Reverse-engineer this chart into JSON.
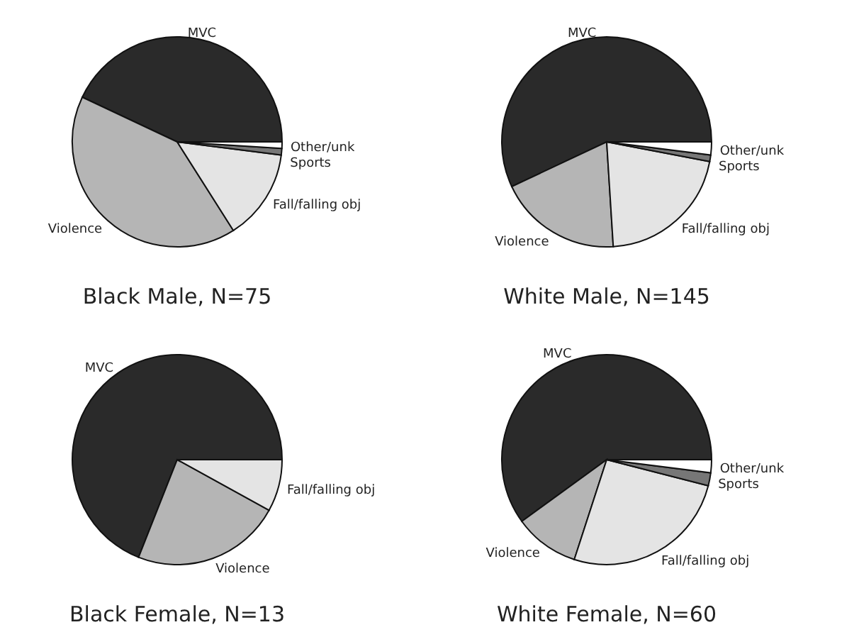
{
  "chart_data": [
    {
      "type": "pie",
      "title": "Black Male, N=75",
      "categories": [
        "MVC",
        "Violence",
        "Fall/falling obj",
        "Sports",
        "Other/unk"
      ],
      "values": [
        43,
        41,
        14,
        1,
        1
      ],
      "colors": [
        "#2a2a2a",
        "#b5b5b5",
        "#e4e4e4",
        "#777777",
        "#ffffff"
      ]
    },
    {
      "type": "pie",
      "title": "White Male, N=145",
      "categories": [
        "MVC",
        "Violence",
        "Fall/falling obj",
        "Sports",
        "Other/unk"
      ],
      "values": [
        57,
        19,
        21,
        1,
        2
      ],
      "colors": [
        "#2a2a2a",
        "#b5b5b5",
        "#e4e4e4",
        "#777777",
        "#ffffff"
      ]
    },
    {
      "type": "pie",
      "title": "Black Female, N=13",
      "categories": [
        "MVC",
        "Violence",
        "Fall/falling obj"
      ],
      "values": [
        69,
        23,
        8
      ],
      "colors": [
        "#2a2a2a",
        "#b5b5b5",
        "#e4e4e4"
      ]
    },
    {
      "type": "pie",
      "title": "White Female, N=60",
      "categories": [
        "MVC",
        "Violence",
        "Fall/falling obj",
        "Sports",
        "Other/unk"
      ],
      "values": [
        60,
        10,
        26,
        2,
        2
      ],
      "colors": [
        "#2a2a2a",
        "#b5b5b5",
        "#e4e4e4",
        "#777777",
        "#ffffff"
      ]
    }
  ]
}
